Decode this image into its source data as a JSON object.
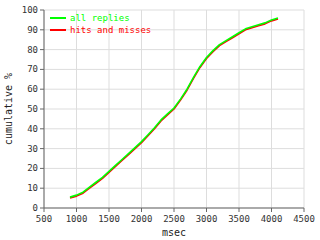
{
  "chart_data": {
    "type": "line",
    "xlabel": "msec",
    "ylabel": "cumulative %",
    "x": [
      900,
      1000,
      1100,
      1200,
      1300,
      1400,
      1500,
      1600,
      1700,
      1800,
      1900,
      2000,
      2100,
      2200,
      2300,
      2400,
      2500,
      2600,
      2700,
      2800,
      2900,
      3000,
      3100,
      3200,
      3300,
      3400,
      3500,
      3600,
      3700,
      3800,
      3900,
      4000,
      4100
    ],
    "series": [
      {
        "name": "all replies",
        "color": "#00ff00",
        "values": [
          5.5,
          6.5,
          8.0,
          10.5,
          13.0,
          15.5,
          18.5,
          21.5,
          24.5,
          27.5,
          30.5,
          33.5,
          37.0,
          40.5,
          44.5,
          47.5,
          50.5,
          55.0,
          60.0,
          66.0,
          71.5,
          76.0,
          79.5,
          82.5,
          84.5,
          86.5,
          88.5,
          90.5,
          91.5,
          92.5,
          93.5,
          95.0,
          96.0
        ]
      },
      {
        "name": "hits and misses",
        "color": "#ff0000",
        "values": [
          5.0,
          6.0,
          7.5,
          10.0,
          12.5,
          15.0,
          18.0,
          21.0,
          24.0,
          27.0,
          30.0,
          33.0,
          36.5,
          40.0,
          44.0,
          47.0,
          50.0,
          54.5,
          59.5,
          65.5,
          71.0,
          75.5,
          79.0,
          82.0,
          84.0,
          86.0,
          88.0,
          90.0,
          91.0,
          92.0,
          93.0,
          94.5,
          95.5
        ]
      }
    ],
    "xlim": [
      500,
      4500
    ],
    "ylim": [
      0,
      100
    ],
    "xticks": [
      500,
      1000,
      1500,
      2000,
      2500,
      3000,
      3500,
      4000,
      4500
    ],
    "yticks": [
      0,
      10,
      20,
      30,
      40,
      50,
      60,
      70,
      80,
      90,
      100
    ],
    "grid": true,
    "legend": "upper left"
  }
}
